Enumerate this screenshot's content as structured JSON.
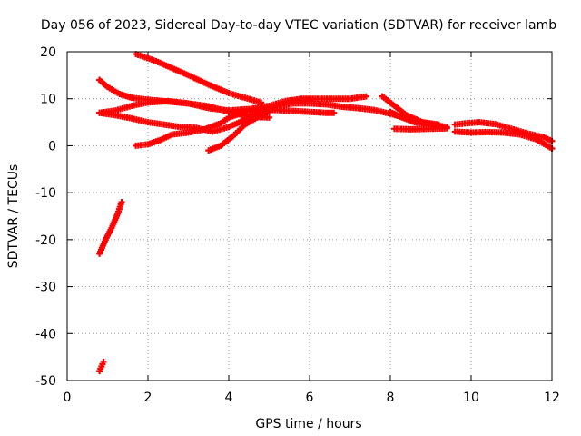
{
  "chart_data": {
    "type": "scatter",
    "title": "Day 056 of 2023, Sidereal Day-to-day VTEC variation (SDTVAR) for receiver lamb",
    "xlabel": "GPS time / hours",
    "ylabel": "SDTVAR / TECUs",
    "xlim": [
      0,
      12
    ],
    "ylim": [
      -50,
      20
    ],
    "xticks": [
      0,
      2,
      4,
      6,
      8,
      10,
      12
    ],
    "yticks": [
      -50,
      -40,
      -30,
      -20,
      -10,
      0,
      10,
      20
    ],
    "grid": true,
    "marker_color": "#ff0000",
    "series": [
      {
        "points": [
          [
            0.8,
            14
          ],
          [
            1.0,
            12.5
          ],
          [
            1.3,
            11
          ],
          [
            1.6,
            10.2
          ],
          [
            2.0,
            9.8
          ],
          [
            2.5,
            9.4
          ],
          [
            3.0,
            9.0
          ],
          [
            3.5,
            8.4
          ],
          [
            4.0,
            7.2
          ],
          [
            4.5,
            6.2
          ],
          [
            5.0,
            6.0
          ]
        ]
      },
      {
        "points": [
          [
            1.7,
            19.5
          ],
          [
            2.2,
            18
          ],
          [
            2.6,
            16.5
          ],
          [
            3.0,
            15
          ],
          [
            3.5,
            13
          ],
          [
            4.0,
            11.2
          ],
          [
            4.4,
            10.2
          ],
          [
            4.8,
            9.2
          ]
        ]
      },
      {
        "points": [
          [
            0.8,
            7
          ],
          [
            1.2,
            7.5
          ],
          [
            1.6,
            8.5
          ],
          [
            2.0,
            9.2
          ],
          [
            2.5,
            9.5
          ],
          [
            3.0,
            9.0
          ],
          [
            3.5,
            8.0
          ],
          [
            4.0,
            7.5
          ],
          [
            4.5,
            7.8
          ],
          [
            5.0,
            8.5
          ],
          [
            5.4,
            9.5
          ],
          [
            5.8,
            10
          ],
          [
            6.2,
            10
          ],
          [
            6.6,
            10
          ],
          [
            7.0,
            10
          ],
          [
            7.4,
            10.5
          ]
        ]
      },
      {
        "points": [
          [
            0.8,
            7
          ],
          [
            1.2,
            6.5
          ],
          [
            1.6,
            5.8
          ],
          [
            2.0,
            5.0
          ],
          [
            2.4,
            4.5
          ],
          [
            2.8,
            4.0
          ],
          [
            3.2,
            3.8
          ],
          [
            3.6,
            3.0
          ],
          [
            4.0,
            4.0
          ],
          [
            4.4,
            5.5
          ],
          [
            4.8,
            7.5
          ],
          [
            5.2,
            8.5
          ],
          [
            5.6,
            9.0
          ],
          [
            6.0,
            9.0
          ],
          [
            6.4,
            8.8
          ],
          [
            6.8,
            8.3
          ],
          [
            7.2,
            8.0
          ],
          [
            7.6,
            7.6
          ],
          [
            8.0,
            6.8
          ],
          [
            8.4,
            5.8
          ],
          [
            8.8,
            5.0
          ],
          [
            9.2,
            4.2
          ]
        ]
      },
      {
        "points": [
          [
            1.7,
            0
          ],
          [
            2.0,
            0.3
          ],
          [
            2.3,
            1.2
          ],
          [
            2.6,
            2.4
          ],
          [
            3.0,
            2.8
          ],
          [
            3.4,
            3.5
          ],
          [
            3.8,
            4.8
          ],
          [
            4.0,
            6.0
          ],
          [
            4.4,
            7.2
          ],
          [
            4.8,
            7.6
          ],
          [
            5.2,
            7.6
          ],
          [
            5.6,
            7.4
          ],
          [
            6.0,
            7.2
          ],
          [
            6.4,
            7.0
          ],
          [
            6.6,
            7.0
          ]
        ]
      },
      {
        "points": [
          [
            3.5,
            -1
          ],
          [
            3.8,
            0
          ],
          [
            4.1,
            2.0
          ],
          [
            4.4,
            4.5
          ],
          [
            4.8,
            6.5
          ],
          [
            5.2,
            8.5
          ],
          [
            5.6,
            9.5
          ],
          [
            6.0,
            9.8
          ]
        ]
      },
      {
        "points": [
          [
            7.8,
            10.5
          ],
          [
            8.1,
            8.5
          ],
          [
            8.4,
            6.5
          ],
          [
            8.8,
            5.0
          ],
          [
            9.2,
            4.5
          ]
        ]
      },
      {
        "points": [
          [
            8.0,
            7.2
          ],
          [
            8.3,
            6.0
          ],
          [
            8.6,
            5.0
          ],
          [
            9.0,
            4.5
          ],
          [
            9.4,
            4.0
          ]
        ]
      },
      {
        "points": [
          [
            8.1,
            3.6
          ],
          [
            8.5,
            3.5
          ],
          [
            9.0,
            3.6
          ],
          [
            9.4,
            3.7
          ]
        ]
      },
      {
        "points": [
          [
            9.6,
            4.5
          ],
          [
            9.9,
            4.8
          ],
          [
            10.2,
            5.0
          ],
          [
            10.6,
            4.6
          ],
          [
            11.0,
            3.6
          ],
          [
            11.4,
            2.6
          ],
          [
            11.8,
            1.8
          ],
          [
            12.0,
            1.0
          ]
        ]
      },
      {
        "points": [
          [
            9.6,
            3.0
          ],
          [
            10.0,
            2.8
          ],
          [
            10.4,
            2.9
          ],
          [
            10.8,
            2.8
          ],
          [
            11.2,
            2.4
          ],
          [
            11.6,
            1.4
          ],
          [
            12.0,
            -0.6
          ]
        ]
      },
      {
        "points": [
          [
            0.8,
            -23
          ],
          [
            0.95,
            -20
          ],
          [
            1.1,
            -17.5
          ],
          [
            1.25,
            -14.5
          ],
          [
            1.35,
            -12
          ]
        ]
      },
      {
        "points": [
          [
            0.8,
            -48
          ],
          [
            0.85,
            -47
          ],
          [
            0.9,
            -46
          ]
        ]
      }
    ]
  }
}
